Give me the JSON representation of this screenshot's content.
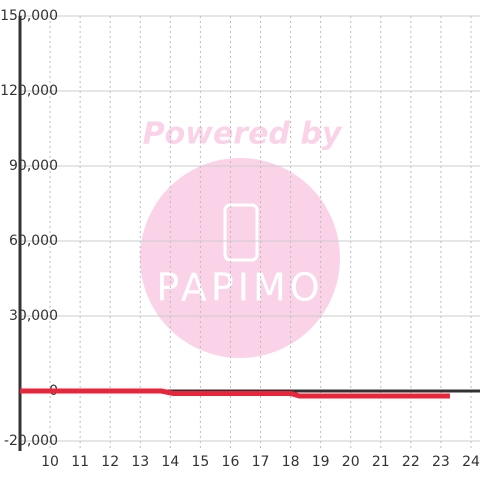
{
  "chart_data": {
    "type": "line",
    "watermark": {
      "title": "Powered by",
      "brand": "PAPIMO"
    },
    "x": [
      9,
      13.7,
      14.1,
      18,
      18.3,
      23.3
    ],
    "series": [
      {
        "color": "#e8253a",
        "values": [
          0,
          0,
          -1000,
          -1000,
          -2000,
          -2000
        ]
      }
    ],
    "xlim": [
      9,
      24.3
    ],
    "xticks": [
      10,
      11,
      12,
      13,
      14,
      15,
      16,
      17,
      18,
      19,
      20,
      21,
      22,
      23,
      24
    ],
    "ylim": [
      -24000,
      150000
    ],
    "yticks": [
      {
        "value": -20000,
        "label": "-20,000"
      },
      0,
      {
        "value": 30000,
        "label": "30,000"
      },
      {
        "value": 60000,
        "label": "60,000"
      },
      {
        "value": 90000,
        "label": "90,000"
      },
      {
        "value": 120000,
        "label": "120,000"
      },
      {
        "value": 150000,
        "label": "150,000"
      }
    ],
    "grid": true
  }
}
